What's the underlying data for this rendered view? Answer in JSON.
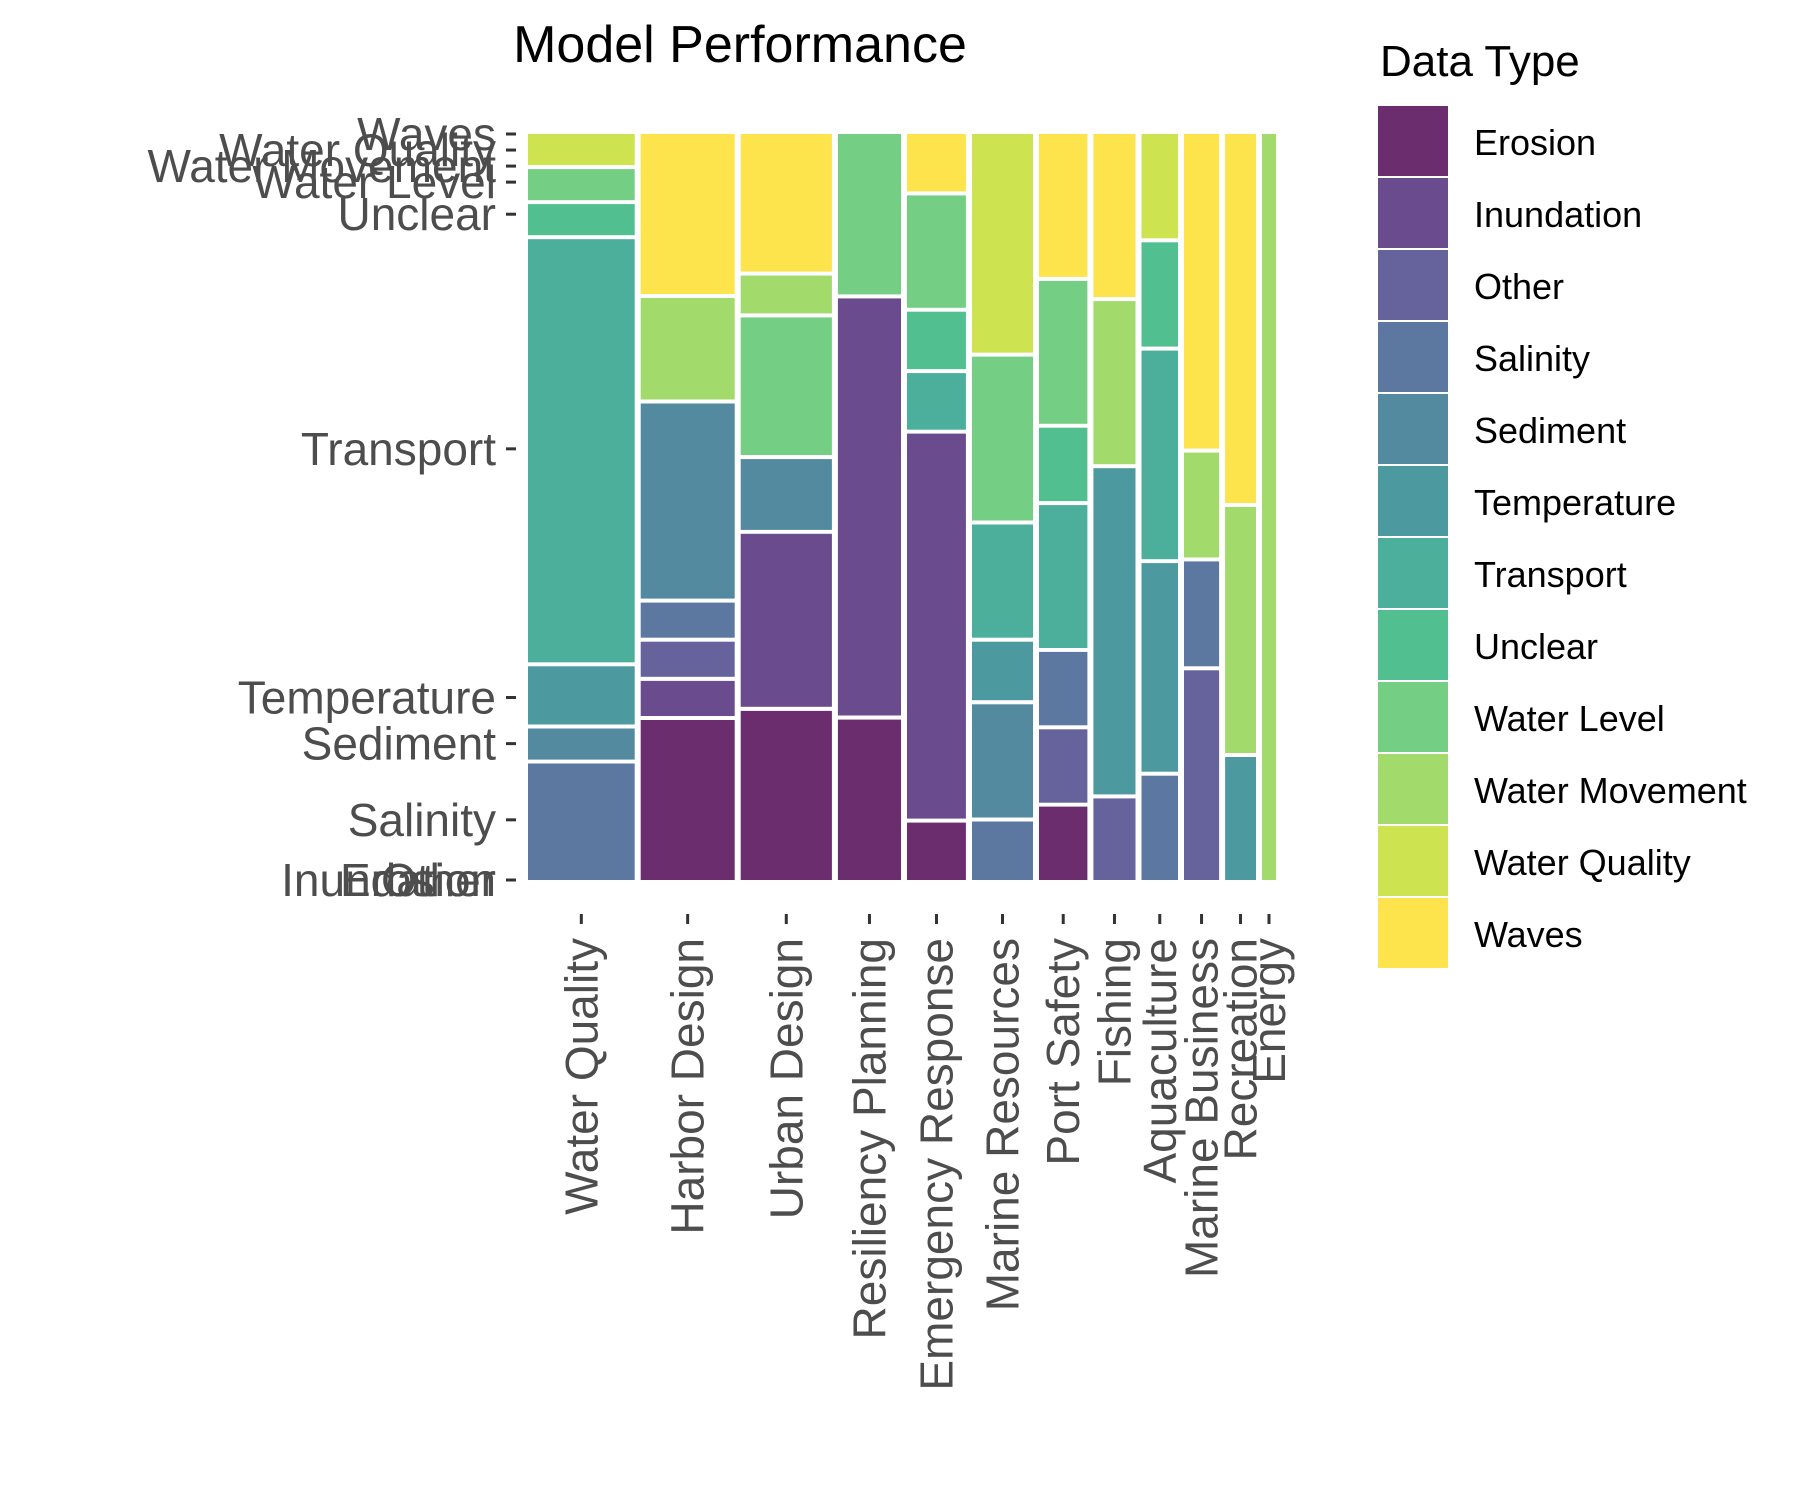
{
  "chart_data": {
    "type": "mosaic",
    "title": "Model Performance",
    "legend": {
      "title": "Data Type",
      "placement": "right",
      "entries": [
        "Erosion",
        "Inundation",
        "Other",
        "Salinity",
        "Sediment",
        "Temperature",
        "Transport",
        "Unclear",
        "Water Level",
        "Water Movement",
        "Water Quality",
        "Waves"
      ]
    },
    "fill_order_bottom_to_top": [
      "Erosion",
      "Inundation",
      "Other",
      "Salinity",
      "Sediment",
      "Temperature",
      "Transport",
      "Unclear",
      "Water Level",
      "Water Movement",
      "Water Quality",
      "Waves"
    ],
    "colors": {
      "Erosion": "#6b2d6d",
      "Inundation": "#6a4b8e",
      "Other": "#66629c",
      "Salinity": "#5c77a0",
      "Sediment": "#538aa0",
      "Temperature": "#4c9aa0",
      "Transport": "#4baf9c",
      "Unclear": "#52bf90",
      "Water Level": "#74cf84",
      "Water Movement": "#a2db6c",
      "Water Quality": "#cde350",
      "Waves": "#fde34c"
    },
    "x_categories": [
      "Water Quality",
      "Harbor Design",
      "Urban Design",
      "Resiliency Planning",
      "Emergency Response",
      "Marine Resources",
      "Port Safety",
      "Fishing",
      "Aquaculture",
      "Marine Business",
      "Recreation",
      "Energy"
    ],
    "x_widths": [
      0.152,
      0.134,
      0.13,
      0.09,
      0.084,
      0.087,
      0.069,
      0.06,
      0.052,
      0.05,
      0.044,
      0.02
    ],
    "y_categories": [
      "Erosion",
      "Inundation",
      "Other",
      "Salinity",
      "Sediment",
      "Temperature",
      "Transport",
      "Unclear",
      "Water Level",
      "Water Movement",
      "Water Quality",
      "Waves"
    ],
    "columns": [
      {
        "category": "Water Quality",
        "proportions": {
          "Erosion": 0.0,
          "Inundation": 0.0,
          "Other": 0.0,
          "Salinity": 0.15,
          "Sediment": 0.04,
          "Temperature": 0.075,
          "Transport": 0.545,
          "Unclear": 0.04,
          "Water Level": 0.04,
          "Water Movement": 0.0,
          "Water Quality": 0.04,
          "Waves": 0.0
        }
      },
      {
        "category": "Harbor Design",
        "proportions": {
          "Erosion": 0.205,
          "Inundation": 0.045,
          "Other": 0.045,
          "Salinity": 0.045,
          "Sediment": 0.25,
          "Temperature": 0.0,
          "Transport": 0.0,
          "Unclear": 0.0,
          "Water Level": 0.0,
          "Water Movement": 0.13,
          "Water Quality": 0.0,
          "Waves": 0.205
        }
      },
      {
        "category": "Urban Design",
        "proportions": {
          "Erosion": 0.215,
          "Inundation": 0.22,
          "Other": 0.0,
          "Salinity": 0.0,
          "Sediment": 0.09,
          "Temperature": 0.0,
          "Transport": 0.0,
          "Unclear": 0.0,
          "Water Level": 0.175,
          "Water Movement": 0.048,
          "Water Quality": 0.0,
          "Waves": 0.175
        }
      },
      {
        "category": "Resiliency Planning",
        "proportions": {
          "Erosion": 0.2,
          "Inundation": 0.52,
          "Other": 0.0,
          "Salinity": 0.0,
          "Sediment": 0.0,
          "Temperature": 0.0,
          "Transport": 0.0,
          "Unclear": 0.0,
          "Water Level": 0.2,
          "Water Movement": 0.0,
          "Water Quality": 0.0,
          "Waves": 0.0
        }
      },
      {
        "category": "Emergency Response",
        "proportions": {
          "Erosion": 0.073,
          "Inundation": 0.49,
          "Other": 0.0,
          "Salinity": 0.0,
          "Sediment": 0.0,
          "Temperature": 0.0,
          "Transport": 0.072,
          "Unclear": 0.073,
          "Water Level": 0.143,
          "Water Movement": 0.0,
          "Water Quality": 0.0,
          "Waves": 0.073
        }
      },
      {
        "category": "Marine Resources",
        "proportions": {
          "Erosion": 0.0,
          "Inundation": 0.0,
          "Other": 0.0,
          "Salinity": 0.075,
          "Sediment": 0.145,
          "Temperature": 0.075,
          "Transport": 0.145,
          "Unclear": 0.0,
          "Water Level": 0.21,
          "Water Movement": 0.0,
          "Water Quality": 0.28,
          "Waves": 0.0
        }
      },
      {
        "category": "Port Safety",
        "proportions": {
          "Erosion": 0.095,
          "Inundation": 0.0,
          "Other": 0.095,
          "Salinity": 0.095,
          "Sediment": 0.0,
          "Temperature": 0.0,
          "Transport": 0.185,
          "Unclear": 0.095,
          "Water Level": 0.185,
          "Water Movement": 0.0,
          "Water Quality": 0.0,
          "Waves": 0.185
        }
      },
      {
        "category": "Fishing",
        "proportions": {
          "Erosion": 0.0,
          "Inundation": 0.0,
          "Other": 0.1,
          "Salinity": 0.0,
          "Sediment": 0.0,
          "Temperature": 0.4,
          "Transport": 0.0,
          "Unclear": 0.0,
          "Water Level": 0.0,
          "Water Movement": 0.2,
          "Water Quality": 0.0,
          "Waves": 0.2
        }
      },
      {
        "category": "Aquaculture",
        "proportions": {
          "Erosion": 0.0,
          "Inundation": 0.0,
          "Other": 0.0,
          "Salinity": 0.13,
          "Sediment": 0.0,
          "Temperature": 0.26,
          "Transport": 0.26,
          "Unclear": 0.13,
          "Water Level": 0.0,
          "Water Movement": 0.0,
          "Water Quality": 0.13,
          "Waves": 0.0
        }
      },
      {
        "category": "Marine Business",
        "proportions": {
          "Erosion": 0.0,
          "Inundation": 0.0,
          "Other": 0.26,
          "Salinity": 0.13,
          "Sediment": 0.0,
          "Temperature": 0.0,
          "Transport": 0.0,
          "Unclear": 0.0,
          "Water Level": 0.0,
          "Water Movement": 0.13,
          "Water Quality": 0.0,
          "Waves": 0.39
        }
      },
      {
        "category": "Recreation",
        "proportions": {
          "Erosion": 0.0,
          "Inundation": 0.0,
          "Other": 0.0,
          "Salinity": 0.0,
          "Sediment": 0.0,
          "Temperature": 0.15,
          "Transport": 0.0,
          "Unclear": 0.0,
          "Water Level": 0.0,
          "Water Movement": 0.3,
          "Water Quality": 0.0,
          "Waves": 0.45
        }
      },
      {
        "category": "Energy",
        "proportions": {
          "Erosion": 0.0,
          "Inundation": 0.0,
          "Other": 0.0,
          "Salinity": 0.0,
          "Sediment": 0.0,
          "Temperature": 0.0,
          "Transport": 0.0,
          "Unclear": 0.0,
          "Water Level": 0.0,
          "Water Movement": 0.9,
          "Water Quality": 0.0,
          "Waves": 0.0
        }
      }
    ]
  }
}
